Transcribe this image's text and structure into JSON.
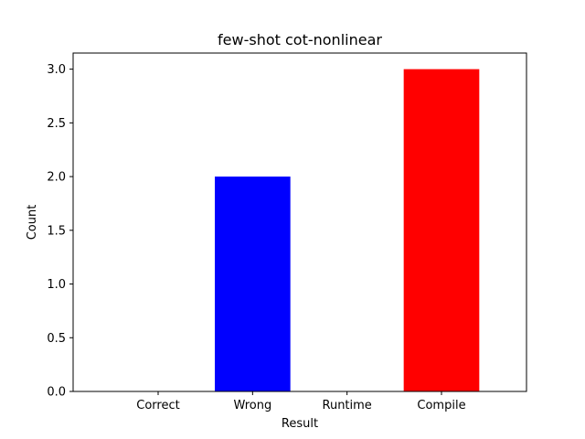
{
  "chart_data": {
    "type": "bar",
    "title": "few-shot cot-nonlinear",
    "xlabel": "Result",
    "ylabel": "Count",
    "categories": [
      "Correct",
      "Wrong",
      "Runtime",
      "Compile"
    ],
    "values": [
      0,
      2,
      0,
      3
    ],
    "bar_colors": [
      "#0000ff",
      "#0000ff",
      "#ff0000",
      "#ff0000"
    ],
    "ylim": [
      0,
      3.15
    ],
    "yticks": [
      0.0,
      0.5,
      1.0,
      1.5,
      2.0,
      2.5,
      3.0
    ],
    "ytick_labels": [
      "0.0",
      "0.5",
      "1.0",
      "1.5",
      "2.0",
      "2.5",
      "3.0"
    ],
    "grid": false,
    "legend": "none"
  }
}
